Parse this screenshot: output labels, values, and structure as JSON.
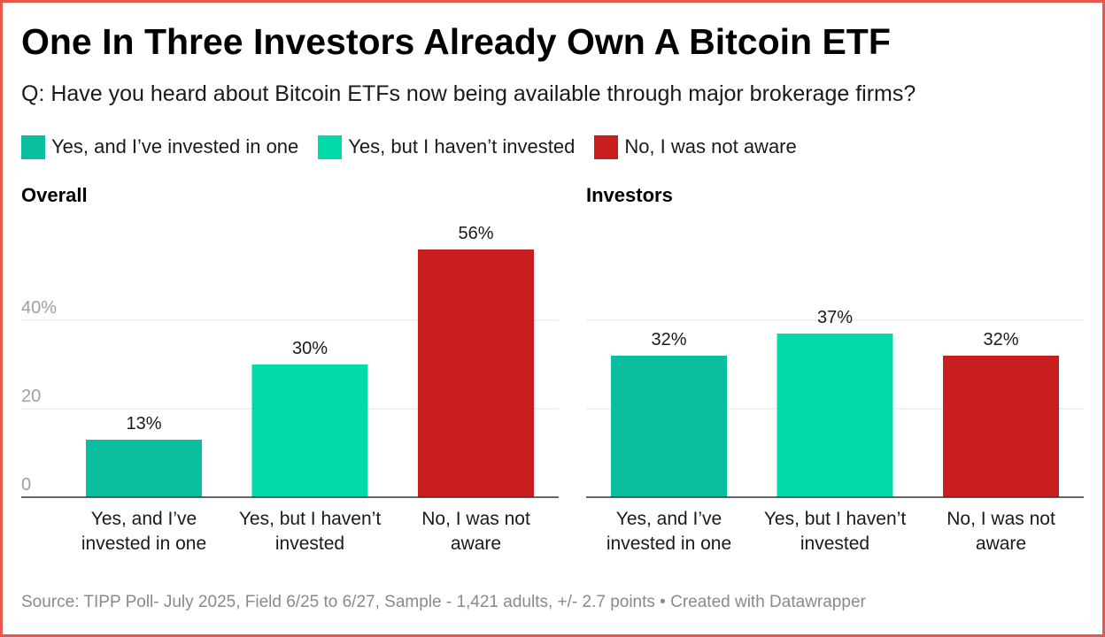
{
  "title": "One In Three Investors Already Own A Bitcoin ETF",
  "subtitle": "Q: Have you heard about Bitcoin ETFs now being available through major brokerage firms?",
  "footer": "Source: TIPP Poll- July 2025, Field 6/25 to 6/27, Sample - 1,421 adults, +/- 2.7 points • Created with Datawrapper",
  "colors": {
    "invested": "#0abf9f",
    "heard": "#00dba8",
    "not_aware": "#c81e1e",
    "frame": "#e8574b"
  },
  "legend": [
    {
      "label": "Yes, and I’ve invested in one",
      "color": "#0abf9f"
    },
    {
      "label": "Yes, but I haven’t invested",
      "color": "#00dba8"
    },
    {
      "label": "No, I was not aware",
      "color": "#c81e1e"
    }
  ],
  "chart_data": [
    {
      "type": "bar",
      "title": "Overall",
      "categories": [
        [
          "Yes, and I’ve",
          "invested in one"
        ],
        [
          "Yes, but I haven’t",
          "invested"
        ],
        [
          "No, I was not",
          "aware"
        ]
      ],
      "values": [
        13,
        30,
        56
      ],
      "value_labels": [
        "13%",
        "30%",
        "56%"
      ],
      "colors": [
        "#0abf9f",
        "#00dba8",
        "#c81e1e"
      ],
      "yticks": [
        0,
        20,
        40
      ],
      "ytick_labels": [
        "0",
        "20",
        "40%"
      ],
      "ylim": [
        0,
        60
      ],
      "grid": true
    },
    {
      "type": "bar",
      "title": "Investors",
      "categories": [
        [
          "Yes, and I’ve",
          "invested in one"
        ],
        [
          "Yes, but I haven’t",
          "invested"
        ],
        [
          "No, I was not",
          "aware"
        ]
      ],
      "values": [
        32,
        37,
        32
      ],
      "value_labels": [
        "32%",
        "37%",
        "32%"
      ],
      "colors": [
        "#0abf9f",
        "#00dba8",
        "#c81e1e"
      ],
      "yticks": [
        0,
        20,
        40
      ],
      "ytick_labels": [
        "",
        "",
        ""
      ],
      "ylim": [
        0,
        60
      ],
      "grid": true
    }
  ]
}
